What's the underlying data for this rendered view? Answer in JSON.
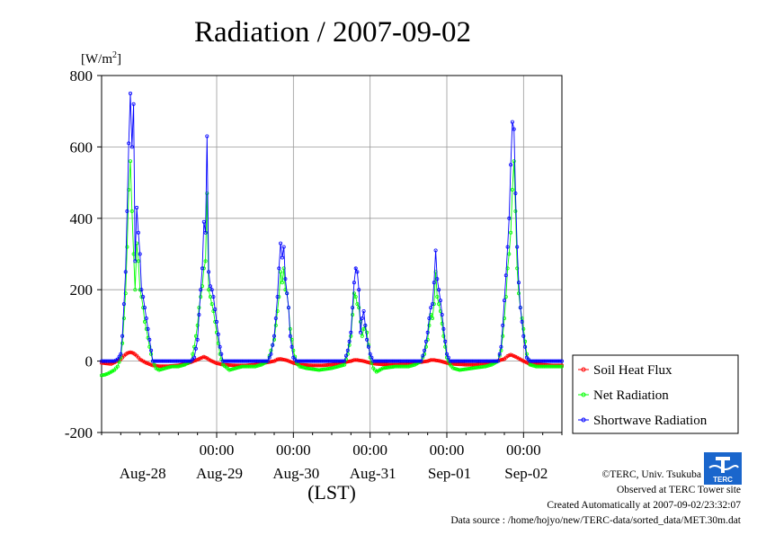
{
  "chart_data": {
    "type": "line",
    "title": "Radiation / 2007-09-02",
    "ylabel": "[W/m",
    "ylabel_sup": "2",
    "ylabel_end": "]",
    "xlabel": "(LST)",
    "ylim": [
      -200,
      800
    ],
    "yticks": [
      "800",
      "600",
      "400",
      "200",
      "0",
      "-200"
    ],
    "ytick_values": [
      800,
      600,
      400,
      200,
      0,
      -200
    ],
    "xlim": [
      0,
      144
    ],
    "time_ticks": [
      "00:00",
      "00:00",
      "00:00",
      "00:00",
      "00:00"
    ],
    "time_tick_hours": [
      36,
      60,
      84,
      108,
      132
    ],
    "date_ticks": [
      "Aug-28",
      "Aug-29",
      "Aug-30",
      "Aug-31",
      "Sep-01",
      "Sep-02"
    ],
    "date_tick_hours": [
      12,
      36,
      60,
      84,
      108,
      132
    ],
    "grid": true,
    "legend_position": "right",
    "series": [
      {
        "name": "Soil Heat Flux",
        "color": "#ff0000",
        "x": [
          0,
          3,
          6,
          7,
          8,
          9,
          10,
          11,
          12,
          14,
          16,
          18,
          21,
          24,
          27,
          30,
          31,
          32,
          33,
          34,
          36,
          38,
          42,
          45,
          48,
          51,
          54,
          55,
          56,
          58,
          60,
          62,
          66,
          69,
          72,
          75,
          78,
          79,
          80,
          82,
          84,
          86,
          90,
          93,
          96,
          99,
          102,
          103,
          104,
          106,
          108,
          110,
          114,
          117,
          120,
          123,
          126,
          127,
          128,
          130,
          132,
          134,
          138,
          141,
          144
        ],
        "y": [
          -5,
          -8,
          5,
          15,
          22,
          25,
          22,
          15,
          5,
          -5,
          -12,
          -14,
          -14,
          -12,
          -6,
          4,
          8,
          12,
          8,
          2,
          -6,
          -10,
          -12,
          -12,
          -10,
          -5,
          0,
          5,
          6,
          2,
          -5,
          -10,
          -12,
          -12,
          -10,
          -5,
          0,
          3,
          3,
          0,
          -5,
          -8,
          -10,
          -10,
          -8,
          -4,
          0,
          3,
          3,
          0,
          -5,
          -8,
          -10,
          -10,
          -8,
          -2,
          6,
          14,
          18,
          10,
          0,
          -8,
          -10,
          -12,
          -12
        ]
      },
      {
        "name": "Net Radiation",
        "color": "#00ff00",
        "x": [
          0,
          1,
          2,
          3,
          4,
          5,
          6,
          6.5,
          7,
          7.5,
          8,
          8.5,
          9,
          9.5,
          10,
          10.5,
          11,
          11.5,
          12,
          12.5,
          13,
          13.5,
          14,
          15,
          16,
          17,
          18,
          20,
          22,
          24,
          26,
          28,
          29,
          30,
          30.5,
          31,
          31.5,
          32,
          32.5,
          33,
          33.5,
          34,
          34.5,
          35,
          36,
          37,
          38,
          40,
          44,
          48,
          50,
          52,
          53,
          54,
          54.5,
          55,
          55.5,
          56,
          56.5,
          57,
          57.5,
          58,
          58.5,
          59,
          60,
          61,
          62,
          64,
          68,
          72,
          74,
          76,
          77,
          78,
          78.5,
          79,
          79.5,
          80,
          80.5,
          81,
          81.5,
          82,
          82.5,
          83,
          84,
          85,
          86,
          88,
          92,
          96,
          98,
          100,
          101,
          102,
          102.5,
          103,
          103.5,
          104,
          104.5,
          105,
          105.5,
          106,
          107,
          108,
          109,
          110,
          112,
          116,
          120,
          122,
          124,
          125,
          125.5,
          126,
          126.5,
          127,
          127.5,
          128,
          128.5,
          129,
          129.5,
          130,
          130.5,
          131,
          132,
          133,
          134,
          136,
          140,
          144
        ],
        "y": [
          -40,
          -38,
          -35,
          -30,
          -25,
          -15,
          10,
          50,
          120,
          190,
          320,
          480,
          560,
          420,
          300,
          200,
          330,
          280,
          200,
          180,
          150,
          110,
          90,
          40,
          0,
          -20,
          -25,
          -20,
          -15,
          -15,
          -10,
          0,
          40,
          100,
          150,
          180,
          210,
          260,
          280,
          470,
          200,
          180,
          160,
          140,
          80,
          20,
          -10,
          -25,
          -15,
          -15,
          -10,
          0,
          30,
          60,
          100,
          140,
          180,
          250,
          220,
          260,
          200,
          190,
          150,
          90,
          30,
          -5,
          -15,
          -20,
          -25,
          -20,
          -15,
          -10,
          20,
          70,
          130,
          190,
          180,
          160,
          150,
          110,
          70,
          90,
          100,
          80,
          10,
          -20,
          -30,
          -20,
          -15,
          -15,
          -10,
          0,
          20,
          60,
          100,
          130,
          120,
          160,
          250,
          180,
          160,
          140,
          70,
          10,
          -10,
          -20,
          -25,
          -20,
          -15,
          -10,
          0,
          30,
          70,
          120,
          180,
          260,
          300,
          360,
          480,
          560,
          420,
          260,
          190,
          150,
          90,
          20,
          -10,
          -15,
          -15,
          -15
        ]
      },
      {
        "name": "Shortwave Radiation",
        "color": "#0000ff",
        "x": [
          0,
          2,
          4,
          5,
          6,
          6.5,
          7,
          7.5,
          8,
          8.5,
          9,
          9.5,
          10,
          10.5,
          11,
          11.5,
          12,
          12.5,
          13,
          13.5,
          14,
          15,
          16,
          18,
          20,
          24,
          28,
          29,
          30,
          30.5,
          31,
          31.5,
          32,
          32.5,
          33,
          33.5,
          34,
          34.5,
          35,
          36,
          37,
          38,
          42,
          48,
          52,
          53,
          54,
          54.5,
          55,
          55.5,
          56,
          56.5,
          57,
          57.5,
          58,
          58.5,
          59,
          60,
          61,
          62,
          66,
          72,
          76,
          77,
          78,
          78.5,
          79,
          79.5,
          80,
          80.5,
          81,
          81.5,
          82,
          82.5,
          83,
          84,
          85,
          86,
          90,
          96,
          100,
          101,
          102,
          102.5,
          103,
          103.5,
          104,
          104.5,
          105,
          105.5,
          106,
          107,
          108,
          109,
          110,
          114,
          120,
          124,
          125,
          125.5,
          126,
          126.5,
          127,
          127.5,
          128,
          128.5,
          129,
          129.5,
          130,
          130.5,
          131,
          132,
          133,
          134,
          138,
          144
        ],
        "y": [
          0,
          0,
          0,
          5,
          20,
          70,
          160,
          250,
          420,
          610,
          750,
          600,
          720,
          280,
          430,
          360,
          300,
          200,
          180,
          150,
          120,
          60,
          0,
          0,
          0,
          0,
          0,
          10,
          60,
          130,
          200,
          260,
          390,
          360,
          630,
          250,
          210,
          200,
          180,
          110,
          40,
          0,
          0,
          0,
          0,
          20,
          70,
          120,
          180,
          260,
          330,
          290,
          320,
          230,
          190,
          150,
          70,
          10,
          0,
          0,
          0,
          0,
          0,
          30,
          80,
          150,
          220,
          260,
          250,
          200,
          80,
          120,
          140,
          100,
          60,
          20,
          0,
          0,
          0,
          0,
          0,
          30,
          80,
          120,
          150,
          160,
          220,
          310,
          230,
          200,
          170,
          90,
          20,
          0,
          0,
          0,
          0,
          0,
          40,
          100,
          170,
          240,
          320,
          400,
          550,
          670,
          650,
          470,
          320,
          220,
          150,
          70,
          10,
          0,
          0,
          0
        ]
      }
    ]
  },
  "credits": {
    "copyright": "©TERC, Univ. Tsukuba",
    "observed": "Observed at TERC Tower site",
    "created": "Created Automatically at 2007-09-02/23:32:07",
    "source": "Data source : /home/hojyo/new/TERC-data/sorted_data/MET.30m.dat",
    "logo_text": "TERC"
  }
}
